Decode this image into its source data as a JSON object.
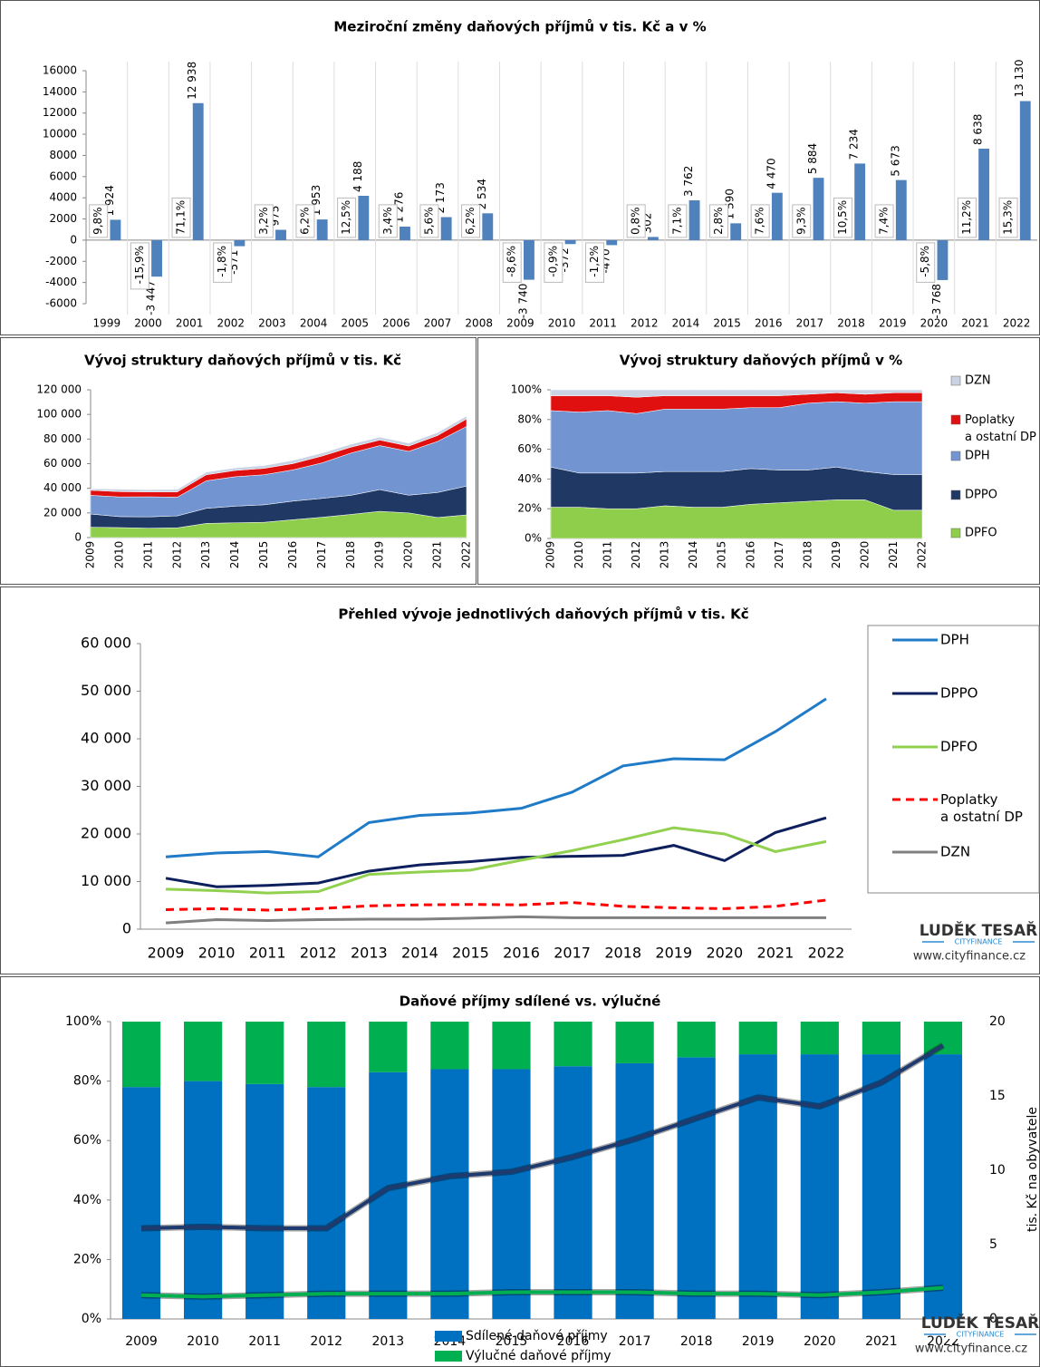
{
  "chart_data": [
    {
      "type": "bar",
      "title": "Meziroční změny daňových příjmů v tis. Kč a v %",
      "categories": [
        "1999",
        "2000",
        "2001",
        "2002",
        "2003",
        "2004",
        "2005",
        "2006",
        "2007",
        "2008",
        "2009",
        "2010",
        "2011",
        "2012",
        "2014",
        "2015",
        "2016",
        "2017",
        "2018",
        "2019",
        "2020",
        "2021",
        "2022"
      ],
      "values": [
        1924,
        -3447,
        12938,
        -571,
        975,
        1953,
        4188,
        1276,
        2173,
        2534,
        -3740,
        -372,
        -470,
        302,
        3762,
        1590,
        4470,
        5884,
        7234,
        5673,
        -3768,
        8638,
        13130
      ],
      "value_labels": [
        "1 924",
        "-3 447",
        "12 938",
        "-571",
        "975",
        "1 953",
        "4 188",
        "1 276",
        "2 173",
        "2 534",
        "-3 740",
        "-372",
        "-470",
        "302",
        "3 762",
        "1 590",
        "4 470",
        "5 884",
        "7 234",
        "5 673",
        "-3 768",
        "8 638",
        "13 130"
      ],
      "percent_labels": [
        "9,8%",
        "-15,9%",
        "71,1%",
        "-1,8%",
        "3,2%",
        "6,2%",
        "12,5%",
        "3,4%",
        "5,6%",
        "6,2%",
        "-8,6%",
        "-0,9%",
        "-1,2%",
        "0,8%",
        "7,1%",
        "2,8%",
        "7,6%",
        "9,3%",
        "10,5%",
        "7,4%",
        "-5,8%",
        "11,2%",
        "15,3%"
      ],
      "color": "#4f81bd",
      "ylim": [
        -6000,
        16000
      ],
      "yticks": [
        -6000,
        -4000,
        -2000,
        0,
        2000,
        4000,
        6000,
        8000,
        10000,
        12000,
        14000,
        16000
      ]
    },
    {
      "type": "area",
      "title": "Vývoj struktury daňových příjmů v tis. Kč",
      "categories": [
        "2009",
        "2010",
        "2011",
        "2012",
        "2013",
        "2014",
        "2015",
        "2016",
        "2017",
        "2018",
        "2019",
        "2020",
        "2021",
        "2022"
      ],
      "series": [
        {
          "color": "#8fce4b",
          "values": [
            8400,
            8100,
            7600,
            7900,
            11500,
            12000,
            12400,
            14500,
            16500,
            18800,
            21300,
            20000,
            16300,
            18400
          ]
        },
        {
          "color": "#1f3864",
          "values": [
            10700,
            8900,
            9200,
            9700,
            12200,
            13500,
            14200,
            15100,
            15300,
            15500,
            17600,
            14400,
            20300,
            23400
          ]
        },
        {
          "color": "#7295d2",
          "values": [
            15200,
            16000,
            16300,
            15200,
            22400,
            23900,
            24400,
            25400,
            28800,
            34300,
            35800,
            35600,
            41500,
            48400
          ]
        },
        {
          "color": "#e01010",
          "values": [
            4100,
            4300,
            4000,
            4300,
            4900,
            5100,
            5200,
            5100,
            5600,
            4800,
            4500,
            4300,
            4800,
            6100
          ]
        },
        {
          "color": "#c9d3e4",
          "values": [
            1300,
            2000,
            1800,
            2000,
            2100,
            2100,
            2300,
            2600,
            2400,
            2400,
            2400,
            2400,
            2400,
            2400
          ]
        }
      ],
      "ylim": [
        0,
        120000
      ],
      "yticks": [
        0,
        {
          "value": 20000,
          "label": "20 000"
        },
        {
          "value": 40000,
          "label": "40 000"
        },
        {
          "value": 60000,
          "label": "60 000"
        },
        {
          "value": 80000,
          "label": "80 000"
        },
        {
          "value": 100000,
          "label": "100 000"
        },
        {
          "value": 120000,
          "label": "120 000"
        }
      ]
    },
    {
      "type": "area",
      "title": "Vývoj struktury daňových příjmů v %",
      "categories": [
        "2009",
        "2010",
        "2011",
        "2012",
        "2013",
        "2014",
        "2015",
        "2016",
        "2017",
        "2018",
        "2019",
        "2020",
        "2021",
        "2022"
      ],
      "series": [
        {
          "name": "DPFO",
          "color": "#8fce4b",
          "values": [
            21,
            21,
            20,
            20,
            22,
            21,
            21,
            23,
            24,
            25,
            26,
            26,
            19,
            19
          ]
        },
        {
          "name": "DPPO",
          "color": "#1f3864",
          "values": [
            27,
            23,
            24,
            24,
            23,
            24,
            24,
            24,
            22,
            21,
            22,
            19,
            24,
            24
          ]
        },
        {
          "name": "DPH",
          "color": "#7295d2",
          "values": [
            38,
            41,
            42,
            40,
            42,
            42,
            42,
            41,
            42,
            45,
            44,
            46,
            49,
            49
          ]
        },
        {
          "name": "Poplatky a ostatní DP",
          "color": "#e01010",
          "values": [
            10,
            11,
            10,
            11,
            9,
            9,
            9,
            8,
            8,
            6,
            6,
            6,
            6,
            6
          ]
        },
        {
          "name": "DZN",
          "color": "#c9d3e4",
          "values": [
            4,
            4,
            4,
            5,
            4,
            4,
            4,
            4,
            4,
            3,
            2,
            3,
            2,
            2
          ]
        }
      ],
      "ylim": [
        0,
        100
      ],
      "yticks": [
        {
          "value": 0,
          "label": "0%"
        },
        {
          "value": 20,
          "label": "20%"
        },
        {
          "value": 40,
          "label": "40%"
        },
        {
          "value": 60,
          "label": "60%"
        },
        {
          "value": 80,
          "label": "80%"
        },
        {
          "value": 100,
          "label": "100%"
        }
      ]
    },
    {
      "type": "line",
      "title": "Přehled vývoje jednotlivých daňových příjmů v tis. Kč",
      "categories": [
        "2009",
        "2010",
        "2011",
        "2012",
        "2013",
        "2014",
        "2015",
        "2016",
        "2017",
        "2018",
        "2019",
        "2020",
        "2021",
        "2022"
      ],
      "series": [
        {
          "name": "DPH",
          "color": "#1f7bc8",
          "values": [
            15200,
            16000,
            16300,
            15200,
            22400,
            23900,
            24400,
            25400,
            28800,
            34300,
            35800,
            35600,
            41500,
            48400
          ]
        },
        {
          "name": "DPPO",
          "color": "#0d1f5c",
          "values": [
            10700,
            8900,
            9200,
            9700,
            12200,
            13500,
            14200,
            15100,
            15300,
            15500,
            17600,
            14400,
            20300,
            23400
          ]
        },
        {
          "name": "DPFO",
          "color": "#92d050",
          "values": [
            8400,
            8100,
            7600,
            7900,
            11500,
            12000,
            12400,
            14500,
            16500,
            18800,
            21300,
            20000,
            16300,
            18400
          ]
        },
        {
          "name": "Poplatky a ostatní DP",
          "color": "#ff0000",
          "dashed": true,
          "values": [
            4100,
            4300,
            4000,
            4300,
            4900,
            5100,
            5200,
            5100,
            5600,
            4800,
            4500,
            4300,
            4800,
            6100
          ]
        },
        {
          "name": "DZN",
          "color": "#808080",
          "values": [
            1300,
            2000,
            1800,
            2000,
            2100,
            2100,
            2300,
            2600,
            2400,
            2400,
            2400,
            2400,
            2400,
            2400
          ]
        }
      ],
      "ylim": [
        0,
        60000
      ],
      "yticks": [
        0,
        {
          "value": 10000,
          "label": "10 000"
        },
        {
          "value": 20000,
          "label": "20 000"
        },
        {
          "value": 30000,
          "label": "30 000"
        },
        {
          "value": 40000,
          "label": "40 000"
        },
        {
          "value": 50000,
          "label": "50 000"
        },
        {
          "value": 60000,
          "label": "60 000"
        }
      ],
      "logo": "LUDĚK TESAŘ",
      "logo_tagline": "CITYFINANCE",
      "url": "www.cityfinance.cz"
    },
    {
      "type": "bar",
      "stacked": true,
      "title": "Daňové příjmy sdílené vs. výlučné",
      "categories": [
        "2009",
        "2010",
        "2011",
        "2012",
        "2013",
        "2014",
        "2015",
        "2016",
        "2017",
        "2018",
        "2019",
        "2020",
        "2021",
        "2022"
      ],
      "series": [
        {
          "name": "Sdílené daňové příjmy",
          "color": "#0070c0",
          "values": [
            78,
            80,
            79,
            78,
            83,
            84,
            84,
            85,
            86,
            88,
            89,
            89,
            89,
            89
          ]
        },
        {
          "name": "Výlučné daňové příjmy",
          "color": "#00b050",
          "values": [
            22,
            20,
            21,
            22,
            17,
            16,
            16,
            15,
            14,
            12,
            11,
            11,
            11,
            11
          ]
        },
        {
          "type": "line",
          "axis": "y2",
          "color": "#1f3a6e",
          "values": [
            6.1,
            6.2,
            6.1,
            6.1,
            8.8,
            9.6,
            9.9,
            10.9,
            12.1,
            13.5,
            14.9,
            14.3,
            15.9,
            18.4
          ]
        },
        {
          "type": "line",
          "axis": "y2",
          "color": "#00b050",
          "values": [
            1.6,
            1.5,
            1.6,
            1.7,
            1.7,
            1.7,
            1.8,
            1.8,
            1.8,
            1.7,
            1.7,
            1.6,
            1.8,
            2.1
          ]
        }
      ],
      "ylim": [
        0,
        100
      ],
      "yticks": [
        {
          "value": 0,
          "label": "0%"
        },
        {
          "value": 20,
          "label": "20%"
        },
        {
          "value": 40,
          "label": "40%"
        },
        {
          "value": 60,
          "label": "60%"
        },
        {
          "value": 80,
          "label": "80%"
        },
        {
          "value": 100,
          "label": "100%"
        }
      ],
      "y2lim": [
        0,
        20
      ],
      "y2ticks": [
        0,
        5,
        10,
        15,
        20
      ],
      "y2label": "tis. Kč na obyvatele",
      "logo": "LUDĚK TESAŘ",
      "logo_tagline": "CITYFINANCE",
      "url": "www.cityfinance.cz"
    }
  ]
}
